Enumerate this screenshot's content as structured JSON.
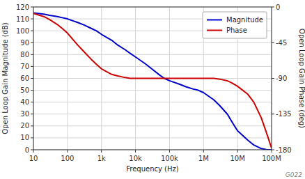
{
  "chart_data": {
    "type": "line",
    "log": "x",
    "grid": true,
    "legend": "upper right",
    "xlabel": "Frequency (Hz)",
    "ylabel": "Open Loop Gain Magnitude (dB)",
    "y2label": "Open Loop Gain Phase (deg)",
    "annotation": "G022",
    "xlim": [
      10,
      100000000
    ],
    "xticks": [
      10,
      100,
      {
        "value": 1000,
        "label": "1k"
      },
      {
        "value": 10000,
        "label": "10k"
      },
      {
        "value": 100000,
        "label": "100k"
      },
      {
        "value": 1000000,
        "label": "1M"
      },
      {
        "value": 10000000,
        "label": "10M"
      },
      {
        "value": 100000000,
        "label": "100M"
      }
    ],
    "ylim": [
      0,
      120
    ],
    "yticks": [
      0,
      10,
      20,
      30,
      40,
      50,
      60,
      70,
      80,
      90,
      100,
      110,
      120
    ],
    "y2lim": [
      -180,
      0
    ],
    "y2ticks": [
      0,
      -45,
      -90,
      -135,
      -180
    ],
    "x": [
      10,
      20,
      30,
      50,
      70,
      100,
      200,
      300,
      500,
      700,
      1000,
      2000,
      3000,
      5000,
      7000,
      10000,
      20000,
      30000,
      50000,
      70000,
      100000,
      200000,
      300000,
      500000,
      700000,
      1000000,
      2000000,
      3000000,
      5000000,
      7000000,
      10000000,
      20000000,
      30000000,
      50000000,
      70000000,
      100000000
    ],
    "series": [
      {
        "name": "Magnitude",
        "color": "#0000cc",
        "values": [
          115,
          114,
          113,
          112,
          111,
          110,
          107,
          105,
          102,
          100,
          97,
          92,
          88,
          84,
          81,
          78,
          72,
          68,
          63,
          60,
          58,
          55,
          53,
          51,
          50,
          48,
          42,
          37,
          30,
          23,
          16,
          8,
          4,
          1,
          0.2,
          0
        ]
      },
      {
        "name": "Phase",
        "color": "#cc0000",
        "axis": "y2",
        "values": [
          -8,
          -12,
          -16,
          -22,
          -27,
          -33,
          -48,
          -56,
          -66,
          -72,
          -78,
          -85,
          -87,
          -89,
          -90,
          -90,
          -90,
          -90,
          -90,
          -90,
          -90,
          -90,
          -90,
          -90,
          -90,
          -90,
          -90,
          -91,
          -93,
          -96,
          -100,
          -110,
          -120,
          -140,
          -158,
          -178
        ]
      }
    ]
  }
}
